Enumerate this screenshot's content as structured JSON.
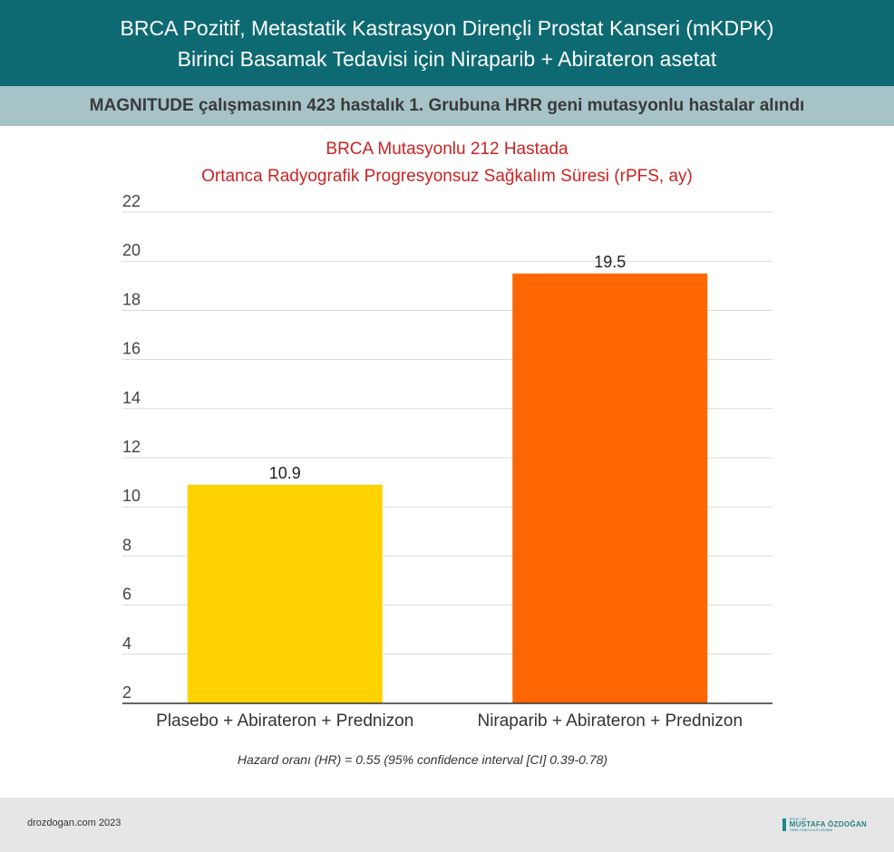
{
  "header": {
    "title_line1": "BRCA Pozitif, Metastatik Kastrasyon Dirençli Prostat Kanseri (mKDPK)",
    "title_line2": "Birinci Basamak Tedavisi için Niraparib + Abirateron asetat"
  },
  "subheader": {
    "text": "MAGNITUDE çalışmasının 423 hastalık 1. Grubuna HRR geni mutasyonlu hastalar alındı"
  },
  "chart_data": {
    "type": "bar",
    "title_line1": "BRCA Mutasyonlu 212 Hastada",
    "title_line2": "Ortanca Radyografik Progresyonsuz Sağkalım Süresi (rPFS, ay)",
    "categories": [
      "Plasebo + Abirateron + Prednizon",
      "Niraparib + Abirateron + Prednizon"
    ],
    "values": [
      10.9,
      19.5
    ],
    "data_labels": [
      "10.9",
      "19.5"
    ],
    "colors": [
      "#ffd200",
      "#ff6600"
    ],
    "ylim": [
      2,
      22
    ],
    "yticks": [
      2,
      4,
      6,
      8,
      10,
      12,
      14,
      16,
      18,
      20,
      22
    ],
    "grid": true,
    "xlabel": "",
    "ylabel": ""
  },
  "footnote": "Hazard oranı (HR) = 0.55 (95% confidence interval [CI] 0.39-0.78)",
  "footer": {
    "site": "drozdogan.com 2023",
    "logo_small": "PROF. DR.",
    "logo_name": "MUSTAFA ÖZDOĞAN",
    "logo_sub": "TIBBİ ONKOLOJİ UZMANI"
  }
}
